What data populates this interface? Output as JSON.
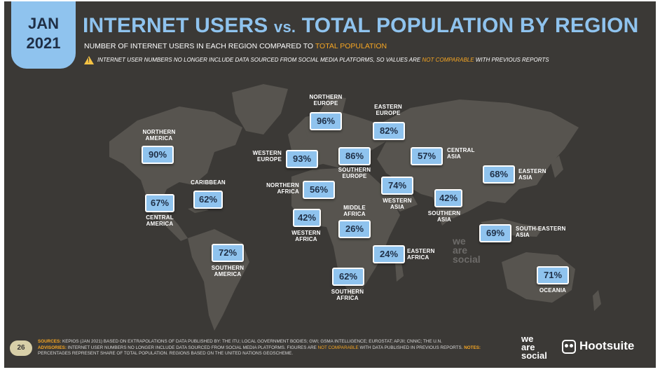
{
  "badge": {
    "month": "JAN",
    "year": "2021"
  },
  "title": {
    "part1": "INTERNET USERS ",
    "vs": "vs.",
    "part2": " TOTAL POPULATION BY REGION"
  },
  "subtitle": {
    "text": "NUMBER OF INTERNET USERS IN EACH REGION COMPARED TO ",
    "highlight": "TOTAL POPULATION"
  },
  "warning": {
    "text1": "INTERNET USER NUMBERS NO LONGER INCLUDE DATA SOURCED FROM SOCIAL MEDIA PLATFORMS, SO VALUES ARE ",
    "highlight": "NOT COMPARABLE",
    "text2": " WITH PREVIOUS REPORTS"
  },
  "colors": {
    "background": "#3b3936",
    "accent": "#8fc3ee",
    "highlight": "#f6a623",
    "map": "#57544f"
  },
  "chart_data": {
    "type": "map",
    "unit": "%",
    "title": "INTERNET USERS vs. TOTAL POPULATION BY REGION",
    "regions": [
      {
        "name": "NORTHERN\nAMERICA",
        "value": 90,
        "label": "90%"
      },
      {
        "name": "CARIBBEAN",
        "value": 62,
        "label": "62%"
      },
      {
        "name": "CENTRAL\nAMERICA",
        "value": 67,
        "label": "67%"
      },
      {
        "name": "SOUTHERN\nAMERICA",
        "value": 72,
        "label": "72%"
      },
      {
        "name": "NORTHERN\nEUROPE",
        "value": 96,
        "label": "96%"
      },
      {
        "name": "WESTERN\nEUROPE",
        "value": 93,
        "label": "93%"
      },
      {
        "name": "SOUTHERN\nEUROPE",
        "value": 86,
        "label": "86%"
      },
      {
        "name": "EASTERN\nEUROPE",
        "value": 82,
        "label": "82%"
      },
      {
        "name": "CENTRAL\nASIA",
        "value": 57,
        "label": "57%"
      },
      {
        "name": "NORTHERN\nAFRICA",
        "value": 56,
        "label": "56%"
      },
      {
        "name": "WESTERN\nASIA",
        "value": 74,
        "label": "74%"
      },
      {
        "name": "SOUTHERN\nASIA",
        "value": 42,
        "label": "42%"
      },
      {
        "name": "EASTERN\nASIA",
        "value": 68,
        "label": "68%"
      },
      {
        "name": "WESTERN\nAFRICA",
        "value": 42,
        "label": "42%"
      },
      {
        "name": "MIDDLE\nAFRICA",
        "value": 26,
        "label": "26%"
      },
      {
        "name": "SOUTH-EASTERN\nASIA",
        "value": 69,
        "label": "69%"
      },
      {
        "name": "EASTERN\nAFRICA",
        "value": 24,
        "label": "24%"
      },
      {
        "name": "SOUTHERN\nAFRICA",
        "value": 62,
        "label": "62%"
      },
      {
        "name": "OCEANIA",
        "value": 71,
        "label": "71%"
      }
    ]
  },
  "footer": {
    "page_number": "26",
    "sources_key": "SOURCES:",
    "sources_text": " KEPIOS (JAN 2021) BASED ON EXTRAPOLATIONS OF DATA PUBLISHED BY: THE ITU; LOCAL GOVERNMENT BODIES; GWI; GSMA INTELLIGENCE; EUROSTAT; APJII; CNNIC; THE U.N.",
    "advisories_key": "ADVISORIES:",
    "advisories_text1": " INTERNET USER NUMBERS NO LONGER INCLUDE DATA SOURCED FROM SOCIAL MEDIA PLATFORMS. FIGURES ARE ",
    "advisories_highlight": "NOT COMPARABLE",
    "advisories_text2": " WITH DATA PUBLISHED IN PREVIOUS REPORTS. ",
    "notes_key": "NOTES:",
    "notes_text": " PERCENTAGES REPRESENT SHARE OF TOTAL POPULATION. REGIONS BASED ON THE UNITED NATIONS GEOSCHEME."
  },
  "branding": {
    "watermark": [
      "we",
      "are",
      "social"
    ],
    "we_are_social": [
      "we",
      "are",
      "social"
    ],
    "hootsuite": "Hootsuite"
  }
}
